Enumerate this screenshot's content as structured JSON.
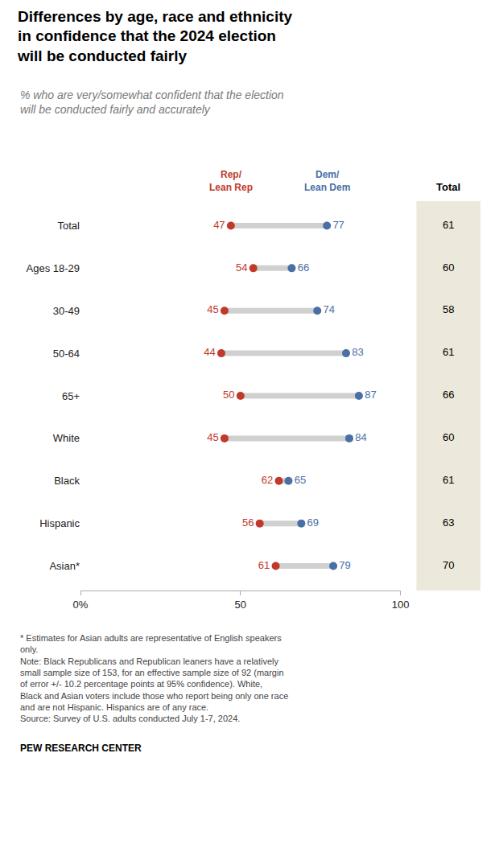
{
  "chart_data": {
    "type": "dumbbell",
    "title": "Differences by age, race and ethnicity\nin confidence that the 2024 election\nwill be conducted fairly",
    "subtitle": "% who are very/somewhat confident that the election\nwill be conducted fairly and accurately",
    "categories": [
      "Total",
      "Ages 18-29",
      "30-49",
      "50-64",
      "65+",
      "White",
      "Black",
      "Hispanic",
      "Asian*"
    ],
    "series": [
      {
        "name": "Rep/\nLean Rep",
        "color": "#c0392b",
        "values": [
          47,
          54,
          45,
          44,
          50,
          45,
          62,
          56,
          61
        ]
      },
      {
        "name": "Dem/\nLean Dem",
        "color": "#4a6fa5",
        "values": [
          77,
          66,
          74,
          83,
          87,
          84,
          65,
          69,
          79
        ]
      },
      {
        "name": "Total",
        "type": "text",
        "color": "#ede8dc",
        "values": [
          61,
          60,
          58,
          61,
          66,
          60,
          61,
          63,
          70
        ]
      }
    ],
    "xlim": [
      0,
      100
    ],
    "xticks": [
      {
        "value": 0,
        "label": "0%"
      },
      50,
      100
    ],
    "grid": false,
    "data_labels": true,
    "annotations": [
      "* Estimates for Asian adults are representative of English speakers\nonly.\nNote: Black Republicans and Republican leaners have a relatively\nsmall sample size of 153, for an effective sample size of 92 (margin\nof error +/- 10.2 percentage points at 95% confidence). White,\nBlack and Asian voters include those who report being only one race\nand are not Hispanic. Hispanics are of any race.\nSource: Survey of U.S. adults conducted July 1-7, 2024.",
      "PEW RESEARCH CENTER"
    ]
  }
}
